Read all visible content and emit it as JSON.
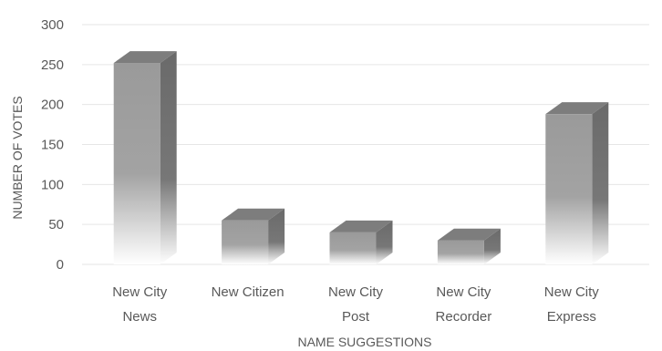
{
  "chart_data": {
    "type": "bar",
    "style": "3d-column",
    "categories": [
      [
        "New City",
        "News"
      ],
      [
        "New Citizen"
      ],
      [
        "New City",
        "Post"
      ],
      [
        "New City",
        "Recorder"
      ],
      [
        "New City",
        "Express"
      ]
    ],
    "values": [
      252,
      55,
      40,
      30,
      188
    ],
    "xlabel": "NAME SUGGESTIONS",
    "ylabel": "NUMBER OF VOTES",
    "ylim": [
      0,
      300
    ],
    "yticks": [
      0,
      50,
      100,
      150,
      200,
      250,
      300
    ],
    "grid": true,
    "colors": {
      "front_top": "#9a9a9a",
      "front_bottom": "#ffffff",
      "side": "#6e6e6e",
      "top": "#7d7d7d",
      "grid": "#e6e6e6",
      "text": "#595959"
    }
  }
}
